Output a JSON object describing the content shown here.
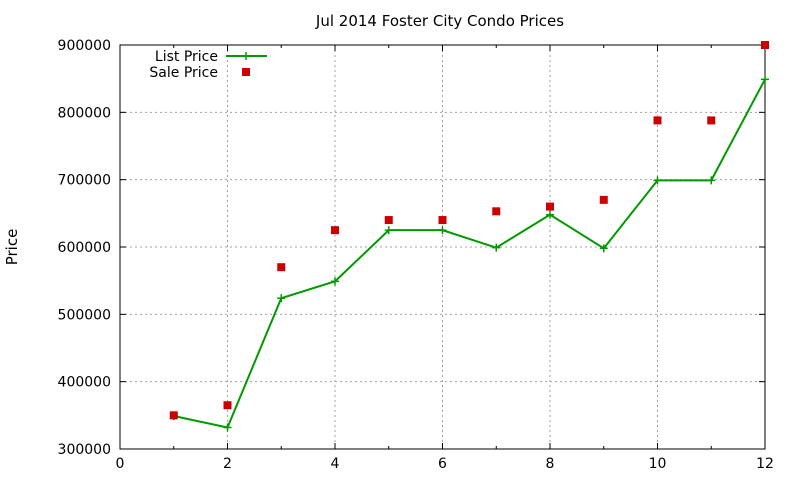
{
  "chart_data": {
    "type": "line",
    "title": "Jul 2014 Foster City Condo Prices",
    "xlabel": "",
    "ylabel": "Price",
    "xlim": [
      0,
      12
    ],
    "ylim": [
      300000,
      900000
    ],
    "xticks": [
      0,
      2,
      4,
      6,
      8,
      10,
      12
    ],
    "yticks": [
      300000,
      400000,
      500000,
      600000,
      700000,
      800000,
      900000
    ],
    "grid": true,
    "legend": "top-left",
    "series": [
      {
        "name": "List Price",
        "style": "lines+points",
        "marker": "plus",
        "color": "#009900",
        "x": [
          1,
          2,
          3,
          4,
          5,
          6,
          7,
          8,
          9,
          10,
          11,
          12
        ],
        "y": [
          349000,
          332000,
          524000,
          549000,
          625000,
          625000,
          599000,
          648000,
          598000,
          699000,
          699000,
          849000
        ]
      },
      {
        "name": "Sale Price",
        "style": "points",
        "marker": "square",
        "color": "#cc0000",
        "x": [
          1,
          2,
          3,
          4,
          5,
          6,
          7,
          8,
          9,
          10,
          11,
          12
        ],
        "y": [
          350000,
          365000,
          570000,
          625000,
          640000,
          640000,
          653000,
          660000,
          670000,
          788000,
          788000,
          900000
        ]
      }
    ]
  }
}
